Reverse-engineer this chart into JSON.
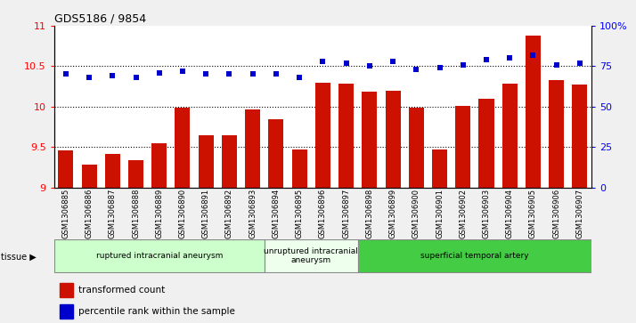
{
  "title": "GDS5186 / 9854",
  "samples": [
    "GSM1306885",
    "GSM1306886",
    "GSM1306887",
    "GSM1306888",
    "GSM1306889",
    "GSM1306890",
    "GSM1306891",
    "GSM1306892",
    "GSM1306893",
    "GSM1306894",
    "GSM1306895",
    "GSM1306896",
    "GSM1306897",
    "GSM1306898",
    "GSM1306899",
    "GSM1306900",
    "GSM1306901",
    "GSM1306902",
    "GSM1306903",
    "GSM1306904",
    "GSM1306905",
    "GSM1306906",
    "GSM1306907"
  ],
  "bar_values": [
    9.46,
    9.28,
    9.41,
    9.34,
    9.55,
    9.99,
    9.65,
    9.65,
    9.96,
    9.84,
    9.47,
    10.3,
    10.28,
    10.18,
    10.2,
    9.99,
    9.47,
    10.01,
    10.1,
    10.28,
    10.88,
    10.33,
    10.27
  ],
  "dot_values": [
    70,
    68,
    69,
    68,
    71,
    72,
    70,
    70,
    70,
    70,
    68,
    78,
    77,
    75,
    78,
    73,
    74,
    76,
    79,
    80,
    82,
    76,
    77
  ],
  "bar_color": "#cc1100",
  "dot_color": "#0000cc",
  "ylim_left": [
    9.0,
    11.0
  ],
  "ylim_right": [
    0,
    100
  ],
  "yticks_left": [
    9.0,
    9.5,
    10.0,
    10.5,
    11.0
  ],
  "ytick_labels_left": [
    "9",
    "9.5",
    "10",
    "10.5",
    "11"
  ],
  "yticks_right": [
    0,
    25,
    50,
    75,
    100
  ],
  "ytick_labels_right": [
    "0",
    "25",
    "50",
    "75",
    "100%"
  ],
  "groups": [
    {
      "label": "ruptured intracranial aneurysm",
      "start": 0,
      "end": 9,
      "color": "#ccffcc"
    },
    {
      "label": "unruptured intracranial\naneurysm",
      "start": 9,
      "end": 13,
      "color": "#eeffee"
    },
    {
      "label": "superficial temporal artery",
      "start": 13,
      "end": 23,
      "color": "#44cc44"
    }
  ],
  "tissue_label": "tissue ▶",
  "legend_bar_label": "transformed count",
  "legend_dot_label": "percentile rank within the sample",
  "background_color": "#f0f0f0",
  "plot_bg_color": "#ffffff",
  "xticklabel_bg": "#d8d8d8"
}
